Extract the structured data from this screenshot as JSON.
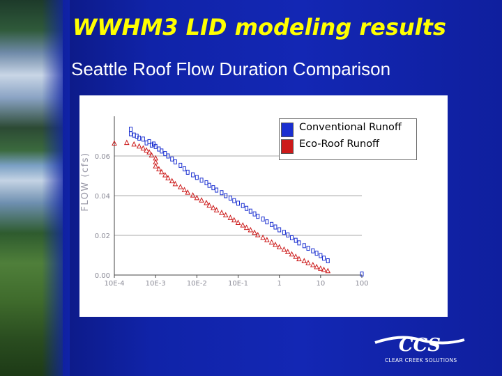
{
  "slide": {
    "title": "WWHM3 LID modeling results",
    "subtitle": "Seattle Roof Flow Duration Comparison",
    "logo_text": "CLEAR CREEK SOLUTIONS",
    "logo_wordmark": "CCS",
    "colors": {
      "background": "#1023a8",
      "title": "#ffff00",
      "subtitle": "#ffffff",
      "logo": "#ffffff"
    }
  },
  "chart_data": {
    "type": "scatter",
    "title": "",
    "xlabel": "",
    "ylabel": "FLOW (cfs)",
    "x_scale": "log",
    "xlim": [
      0.0001,
      100
    ],
    "ylim": [
      0,
      0.08
    ],
    "x_tick_values": [
      0.0001,
      0.001,
      0.01,
      0.1,
      1,
      10,
      100
    ],
    "x_tick_labels": [
      "10E-4",
      "10E-3",
      "10E-2",
      "10E-1",
      "1",
      "10",
      "100"
    ],
    "y_tick_values": [
      0,
      0.02,
      0.04,
      0.06
    ],
    "y_tick_labels": [
      "0.00",
      "0.02",
      "0.04",
      "0.06"
    ],
    "grid": true,
    "legend_position": "top-right",
    "series": [
      {
        "name": "Conventional Runoff",
        "marker": "square",
        "color": "#1a2fd0",
        "x": [
          0.00025,
          0.00025,
          0.0003,
          0.00035,
          0.0004,
          0.0005,
          0.0006,
          0.0007,
          0.0008,
          0.0009,
          0.001,
          0.0012,
          0.0014,
          0.0017,
          0.002,
          0.0025,
          0.003,
          0.004,
          0.005,
          0.006,
          0.008,
          0.01,
          0.013,
          0.017,
          0.02,
          0.025,
          0.03,
          0.04,
          0.05,
          0.065,
          0.08,
          0.1,
          0.13,
          0.16,
          0.2,
          0.25,
          0.3,
          0.4,
          0.5,
          0.65,
          0.8,
          1,
          1.3,
          1.6,
          2,
          2.5,
          3,
          4,
          5,
          6.5,
          8,
          10,
          12,
          15,
          100
        ],
        "y": [
          0.0735,
          0.0712,
          0.0705,
          0.07,
          0.069,
          0.0685,
          0.0666,
          0.0672,
          0.0655,
          0.066,
          0.0648,
          0.0635,
          0.0625,
          0.0612,
          0.06,
          0.0585,
          0.057,
          0.0553,
          0.0535,
          0.0518,
          0.0505,
          0.0492,
          0.0478,
          0.0465,
          0.0452,
          0.044,
          0.0428,
          0.0415,
          0.04,
          0.0388,
          0.0375,
          0.0362,
          0.035,
          0.0336,
          0.0322,
          0.0308,
          0.0296,
          0.0282,
          0.0268,
          0.0255,
          0.0242,
          0.0228,
          0.0215,
          0.0202,
          0.0188,
          0.0175,
          0.0162,
          0.0148,
          0.0135,
          0.0122,
          0.011,
          0.0098,
          0.0085,
          0.0072,
          0.0005
        ]
      },
      {
        "name": "Eco-Roof Runoff",
        "marker": "triangle",
        "color": "#cc1a1a",
        "x": [
          0.0001,
          0.0002,
          0.0003,
          0.0004,
          0.0005,
          0.0006,
          0.0007,
          0.0008,
          0.001,
          0.001,
          0.001,
          0.0012,
          0.0014,
          0.0017,
          0.002,
          0.0025,
          0.003,
          0.004,
          0.005,
          0.006,
          0.008,
          0.01,
          0.013,
          0.017,
          0.02,
          0.025,
          0.03,
          0.04,
          0.05,
          0.065,
          0.08,
          0.1,
          0.13,
          0.16,
          0.2,
          0.25,
          0.3,
          0.4,
          0.5,
          0.65,
          0.8,
          1,
          1.3,
          1.6,
          2,
          2.5,
          3,
          4,
          5,
          6.5,
          8,
          10,
          12,
          15
        ],
        "y": [
          0.0665,
          0.0668,
          0.066,
          0.065,
          0.064,
          0.063,
          0.062,
          0.0605,
          0.059,
          0.057,
          0.055,
          0.0535,
          0.052,
          0.0505,
          0.049,
          0.0475,
          0.046,
          0.0445,
          0.043,
          0.0417,
          0.0403,
          0.039,
          0.0378,
          0.0365,
          0.0352,
          0.034,
          0.0328,
          0.0315,
          0.0303,
          0.029,
          0.0278,
          0.0265,
          0.0252,
          0.024,
          0.0228,
          0.0215,
          0.0203,
          0.019,
          0.0178,
          0.0166,
          0.0154,
          0.0142,
          0.013,
          0.0118,
          0.0106,
          0.0094,
          0.0082,
          0.0072,
          0.0062,
          0.0052,
          0.0042,
          0.0034,
          0.0028,
          0.0022
        ]
      }
    ]
  }
}
